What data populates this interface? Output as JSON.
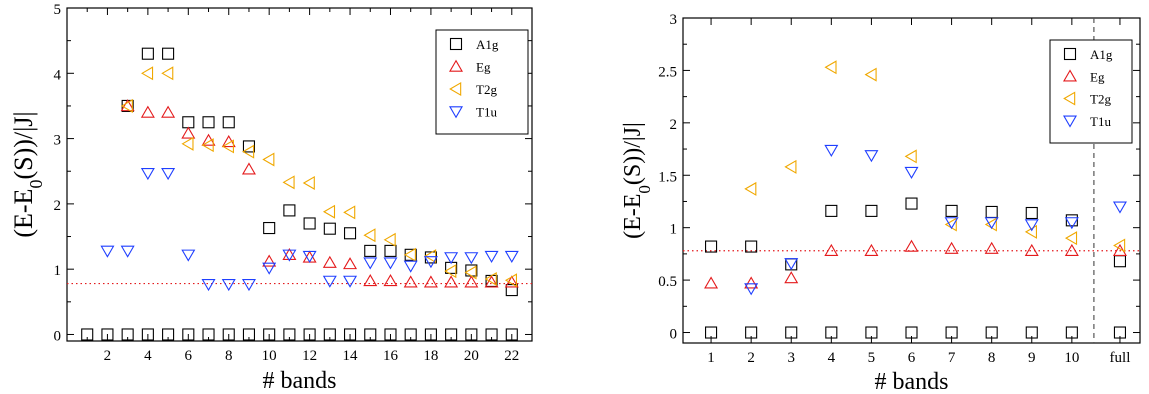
{
  "chart_data": [
    {
      "type": "scatter",
      "title": "",
      "xlabel": "# bands",
      "ylabel": "(E-E0(S))/|J|",
      "ylabel_parts": {
        "base": "(E-E",
        "sub": "0",
        "rest": "(S))/|J|"
      },
      "xlim": [
        0,
        23
      ],
      "ylim": [
        -0.1,
        5
      ],
      "xticks": [
        {
          "v": 2,
          "label": "2"
        },
        {
          "v": 4,
          "label": "4"
        },
        {
          "v": 6,
          "label": "6"
        },
        {
          "v": 8,
          "label": "8"
        },
        {
          "v": 10,
          "label": "10"
        },
        {
          "v": 12,
          "label": "12"
        },
        {
          "v": 14,
          "label": "14"
        },
        {
          "v": 16,
          "label": "16"
        },
        {
          "v": 18,
          "label": "18"
        },
        {
          "v": 20,
          "label": "20"
        },
        {
          "v": 22,
          "label": "22"
        }
      ],
      "xminor": [
        1,
        3,
        5,
        7,
        9,
        11,
        13,
        15,
        17,
        19,
        21
      ],
      "yticks": [
        {
          "v": 0,
          "label": "0"
        },
        {
          "v": 1,
          "label": "1"
        },
        {
          "v": 2,
          "label": "2"
        },
        {
          "v": 3,
          "label": "3"
        },
        {
          "v": 4,
          "label": "4"
        },
        {
          "v": 5,
          "label": "5"
        }
      ],
      "yminor": [
        0.5,
        1.5,
        2.5,
        3.5,
        4.5
      ],
      "reference_line": {
        "y": 0.78,
        "color": "#e41a1c",
        "style": "dotted"
      },
      "legend": {
        "position": "top-right"
      },
      "series": [
        {
          "name": "A1g",
          "marker": "square",
          "color": "#000000",
          "x": [
            1,
            2,
            3,
            4,
            5,
            6,
            7,
            8,
            9,
            10,
            11,
            12,
            13,
            14,
            15,
            16,
            17,
            18,
            19,
            20,
            21,
            22,
            3,
            4,
            5,
            6,
            7,
            8,
            9,
            10,
            11,
            12,
            13,
            14,
            15,
            16,
            17,
            18,
            19,
            20,
            21,
            22
          ],
          "y": [
            0,
            0,
            0,
            0,
            0,
            0,
            0,
            0,
            0,
            0,
            0,
            0,
            0,
            0,
            0,
            0,
            0,
            0,
            0,
            0,
            0,
            0,
            3.5,
            4.3,
            4.3,
            3.25,
            3.25,
            3.25,
            2.88,
            1.63,
            1.9,
            1.7,
            1.62,
            1.55,
            1.28,
            1.28,
            1.22,
            1.18,
            1.02,
            0.98,
            0.82,
            0.68
          ]
        },
        {
          "name": "Eg",
          "marker": "triangle-up",
          "color": "#e41a1c",
          "x": [
            3,
            4,
            5,
            6,
            7,
            8,
            9,
            10,
            11,
            12,
            13,
            14,
            15,
            16,
            17,
            18,
            19,
            20,
            21,
            22
          ],
          "y": [
            3.5,
            3.4,
            3.4,
            3.08,
            2.97,
            2.95,
            2.53,
            1.12,
            1.22,
            1.18,
            1.1,
            1.08,
            0.82,
            0.82,
            0.8,
            0.8,
            0.8,
            0.8,
            0.8,
            0.8
          ]
        },
        {
          "name": "T2g",
          "marker": "triangle-left",
          "color": "#f0a800",
          "x": [
            3,
            4,
            5,
            6,
            7,
            8,
            9,
            10,
            11,
            12,
            13,
            14,
            15,
            16,
            17,
            18,
            19,
            20,
            21,
            22
          ],
          "y": [
            3.5,
            4.0,
            4.0,
            2.92,
            2.9,
            2.88,
            2.8,
            2.68,
            2.33,
            2.32,
            1.88,
            1.87,
            1.52,
            1.45,
            1.22,
            1.2,
            0.97,
            0.95,
            0.85,
            0.83
          ]
        },
        {
          "name": "T1u",
          "marker": "triangle-down",
          "color": "#1f3fff",
          "x": [
            2,
            3,
            4,
            5,
            6,
            7,
            8,
            9,
            10,
            11,
            12,
            13,
            14,
            15,
            16,
            17,
            18,
            19,
            20,
            21,
            22
          ],
          "y": [
            1.28,
            1.28,
            2.47,
            2.47,
            1.22,
            0.77,
            0.77,
            0.77,
            1.02,
            1.22,
            1.2,
            0.82,
            0.82,
            1.1,
            1.1,
            1.05,
            1.12,
            1.18,
            1.18,
            1.2,
            1.2
          ]
        }
      ]
    },
    {
      "type": "scatter",
      "title": "",
      "xlabel": "# bands",
      "ylabel": "(E-E0(S))/|J|",
      "ylabel_parts": {
        "base": "(E-E",
        "sub": "0",
        "rest": "(S))/|J|"
      },
      "xlim": [
        0.3,
        11.7
      ],
      "ylim": [
        -0.1,
        3
      ],
      "xticks": [
        {
          "v": 1,
          "label": "1"
        },
        {
          "v": 2,
          "label": "2"
        },
        {
          "v": 3,
          "label": "3"
        },
        {
          "v": 4,
          "label": "4"
        },
        {
          "v": 5,
          "label": "5"
        },
        {
          "v": 6,
          "label": "6"
        },
        {
          "v": 7,
          "label": "7"
        },
        {
          "v": 8,
          "label": "8"
        },
        {
          "v": 9,
          "label": "9"
        },
        {
          "v": 10,
          "label": "10"
        },
        {
          "v": 11.2,
          "label": "full"
        }
      ],
      "xminor": [],
      "yticks": [
        {
          "v": 0,
          "label": "0"
        },
        {
          "v": 0.5,
          "label": "0.5"
        },
        {
          "v": 1,
          "label": "1"
        },
        {
          "v": 1.5,
          "label": "1.5"
        },
        {
          "v": 2,
          "label": "2"
        },
        {
          "v": 2.5,
          "label": "2.5"
        },
        {
          "v": 3,
          "label": "3"
        }
      ],
      "yminor": [
        0.25,
        0.75,
        1.25,
        1.75,
        2.25,
        2.75
      ],
      "reference_line": {
        "y": 0.78,
        "color": "#e41a1c",
        "style": "dotted"
      },
      "divider": {
        "x": 10.55,
        "color": "#555555",
        "style": "dashed"
      },
      "legend": {
        "position": "top-right"
      },
      "series": [
        {
          "name": "A1g",
          "marker": "square",
          "color": "#000000",
          "x": [
            1,
            2,
            3,
            4,
            5,
            6,
            7,
            8,
            9,
            10,
            11.2,
            1,
            2,
            3,
            4,
            5,
            6,
            7,
            8,
            9,
            10,
            11.2
          ],
          "y": [
            0,
            0,
            0,
            0,
            0,
            0,
            0,
            0,
            0,
            0,
            0,
            0.82,
            0.82,
            0.65,
            1.16,
            1.16,
            1.23,
            1.16,
            1.15,
            1.14,
            1.07,
            0.68
          ]
        },
        {
          "name": "Eg",
          "marker": "triangle-up",
          "color": "#e41a1c",
          "x": [
            1,
            2,
            3,
            4,
            5,
            6,
            7,
            8,
            9,
            10,
            11.2
          ],
          "y": [
            0.47,
            0.47,
            0.52,
            0.78,
            0.78,
            0.82,
            0.8,
            0.8,
            0.78,
            0.78,
            0.78
          ]
        },
        {
          "name": "T2g",
          "marker": "triangle-left",
          "color": "#f0a800",
          "x": [
            2,
            3,
            4,
            5,
            6,
            7,
            8,
            9,
            10,
            11.2
          ],
          "y": [
            1.37,
            1.58,
            2.53,
            2.46,
            1.68,
            1.03,
            1.03,
            0.96,
            0.9,
            0.83
          ]
        },
        {
          "name": "T1u",
          "marker": "triangle-down",
          "color": "#1f3fff",
          "x": [
            2,
            3,
            4,
            5,
            6,
            7,
            8,
            9,
            10,
            11.2
          ],
          "y": [
            0.42,
            0.66,
            1.74,
            1.69,
            1.53,
            1.05,
            1.05,
            1.03,
            1.05,
            1.2
          ]
        }
      ]
    }
  ]
}
